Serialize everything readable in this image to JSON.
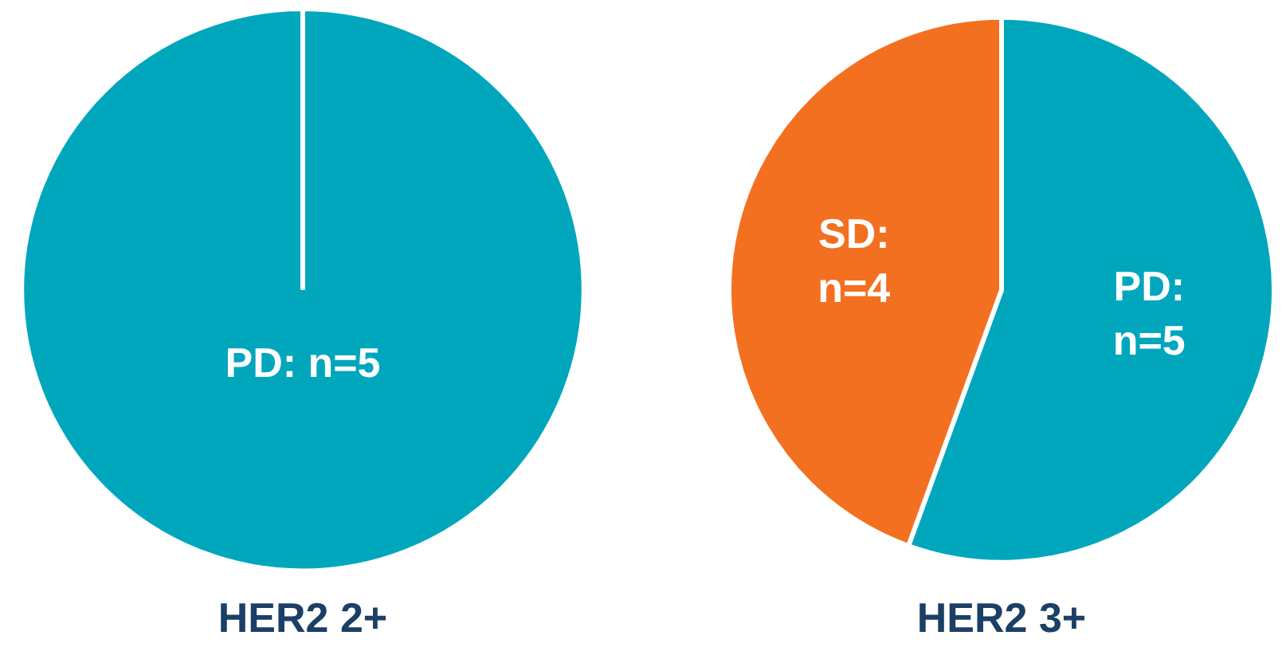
{
  "chart_data": [
    {
      "type": "pie",
      "title": "HER2 2+",
      "categories": [
        null
      ],
      "values": [
        5
      ],
      "colors": [
        "#00a7bc"
      ],
      "value_labels": [
        "PD: n=5"
      ]
    },
    {
      "type": "pie",
      "title": "HER2 3+",
      "categories": [
        null,
        null
      ],
      "values": [
        5,
        4
      ],
      "colors": [
        "#00a7bc",
        "#f37021"
      ],
      "value_labels": [
        "PD:\nn=5",
        "SD:\nn=4"
      ]
    }
  ]
}
